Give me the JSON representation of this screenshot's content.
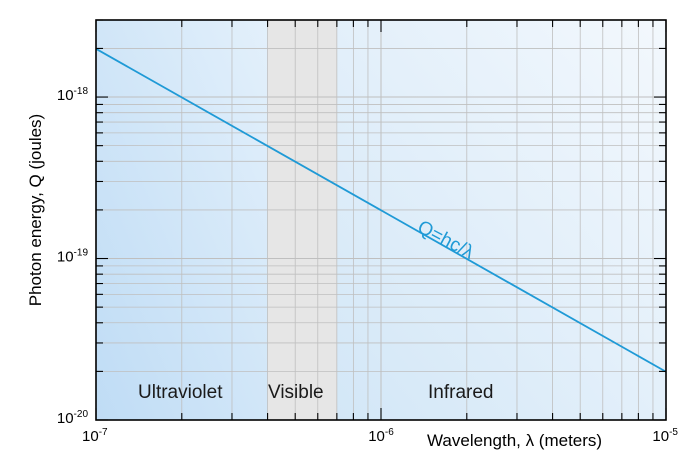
{
  "chart_data": {
    "type": "line",
    "x_scale": "log",
    "y_scale": "log",
    "xlim": [
      1e-07,
      1e-05
    ],
    "ylim": [
      1e-20,
      3e-18
    ],
    "xlabel": "Wavelength, λ (meters)",
    "ylabel": "Photon energy, Q (joules)",
    "grid": true,
    "x_ticks": [
      {
        "base": "10",
        "exp": "-7",
        "value": 1e-07
      },
      {
        "base": "10",
        "exp": "-6",
        "value": 1e-06
      },
      {
        "base": "10",
        "exp": "-5",
        "value": 1e-05
      }
    ],
    "y_ticks": [
      {
        "base": "10",
        "exp": "-20",
        "value": 1e-20
      },
      {
        "base": "10",
        "exp": "-19",
        "value": 1e-19
      },
      {
        "base": "10",
        "exp": "-18",
        "value": 1e-18
      }
    ],
    "series": [
      {
        "x": [
          1e-07,
          1e-05
        ],
        "y": [
          1.99e-18,
          1.99e-20
        ],
        "color": "#1f9ad6"
      }
    ],
    "annotation": {
      "text": "Q=hc/λ",
      "color": "#1f9ad6"
    },
    "regions": [
      {
        "label": "Ultraviolet",
        "x_range": [
          1e-07,
          4e-07
        ],
        "color": "#c9e2f7"
      },
      {
        "label": "Visible",
        "x_range": [
          4e-07,
          7e-07
        ],
        "color": "#e6e6e6"
      },
      {
        "label": "Infrared",
        "x_range": [
          7e-07,
          1e-05
        ],
        "color": "#d7e9f7"
      }
    ]
  }
}
